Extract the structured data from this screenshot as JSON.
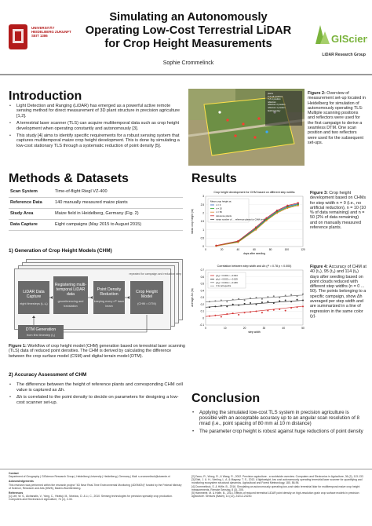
{
  "header": {
    "title_lines": [
      "Simulating an Autonomously",
      "Operating Low-Cost Terrestrial LiDAR",
      "for Crop Height Measurements"
    ],
    "author": "Sophie Crommelinck",
    "university_logo_text": "UNIVERSITÄT HEIDELBERG ZUKUNFT SEIT 1386",
    "lab_logo_text": "GIScience",
    "lab_name": "LiDAR Research Group"
  },
  "introduction": {
    "heading": "Introduction",
    "bullets": [
      "Light Detection and Ranging (LiDAR) has emerged as a powerful active remote sensing method for direct measurement of 3D plant structure in precision agriculture [1,2].",
      "A terrestrial laser scanner (TLS) can acquire multitemporal data such as crop height development when operating constantly and autonomously [3].",
      "This study [4] aims to identify specific requirements for a robust sensing system that captures multitemporal maize crop height development. This is done by simulating a low-cost stationary TLS through a systematic reduction of point density [5]."
    ],
    "figure2_caption_label": "Figure 2:",
    "figure2_caption": "Overview of measurement set-up located in Heidelberg for simulation of autonomously operating TLS: Multiple scanning positions and reflectors were used for the first campaign to derive a seamless DTM. One scan position and two reflectors were used for the subsequent set-ups.",
    "figure2_legend": [
      "plants",
      "TLS all positions",
      "TLS 1 position",
      "reflectors",
      "reflectors 2 position",
      "reflectors 1 position",
      "field boundary"
    ]
  },
  "methods": {
    "heading": "Methods & Datasets",
    "table": [
      {
        "key": "Scan System",
        "value": "Time-of-flight Riegl VZ-400"
      },
      {
        "key": "Reference Data",
        "value": "140 manually measured maize plants"
      },
      {
        "key": "Study Area",
        "value": "Maize field in Heidelberg, Germany (Fig. 2)"
      },
      {
        "key": "Data Capture",
        "value": "Eight campaigns (May 2015 to August 2015)"
      }
    ],
    "sub1": "1) Generation of Crop Height Models (CHM)",
    "workflow": {
      "repeat_label": "repeated for campaign and reduction step",
      "box1": "LiDAR Data Capture",
      "box1_sub": "eight timesteps (t₁-t₈)",
      "box2": "Registering multi-temporal LiDAR data",
      "box2_sub": "georeferencing and translation",
      "box3": "Point Density Reduction",
      "box3_sub": "keeping every nᵗʰ laser beam",
      "box4": "Crop Height Model",
      "box4_sub": "(CHM = DTM)",
      "box5": "DTM Generation",
      "box5_sub": "from first timestep (t₁)"
    },
    "figure1_label": "Figure 1:",
    "figure1_caption": "Workflow of crop height model (CHM) generation based on terrestrial laser scanning (TLS) data of reduced point densities. The CHM is derived by calculating the difference between the crop surface model (CSM) and digital terrain model (DTM).",
    "sub2": "2) Accuracy Assessment of CHM",
    "bullets2": [
      "The difference between the height of reference plants and corresponding CHM cell value is captured as Δh.",
      "Δh is correlated to the point density to decide on parameters for designing a low-cost scanner set-up."
    ]
  },
  "results": {
    "heading": "Results",
    "figure3_label": "Figure 3:",
    "figure3_caption": "Crop height development based on CHMs for step width n = 0 (i.e., no artificial reduction), n = 10 (10 % of data remaining) and n = 50 (2% of data remaining) and on manually measured reference plants.",
    "figure4_label": "Figure 4:",
    "figure4_caption": "Accuracy of CHM at 40 (t₄), 95 (t₆) and 114 (t₈) days after seeding based on point clouds reduced with different step widths (n = 0 ... 50). The points belonging to a specific campaign, show Δh averaged per step width and are summarized in a line of regression in the same color (y)."
  },
  "chart_data": [
    {
      "type": "line",
      "title": "Crop height development for CHM based on different step widths",
      "xlabel": "days after seeding",
      "ylabel": "mean crop height (m)",
      "x": [
        0,
        20,
        40,
        60,
        80,
        100,
        120
      ],
      "xlim": [
        0,
        120
      ],
      "ylim": [
        0,
        3
      ],
      "yticks": [
        0,
        0.5,
        1,
        1.5,
        2,
        2.5,
        3
      ],
      "legend_title": "Mean crop height at",
      "legend": [
        "n = 0",
        "n = 10",
        "n = 50",
        "reference plants",
        "mean number of … reference plants for CHM (n=0)"
      ],
      "series": [
        {
          "name": "n = 0",
          "color": "#2b62c2",
          "x": [
            13,
            40,
            62,
            75,
            88,
            101,
            114
          ],
          "values": [
            0.05,
            0.3,
            1.1,
            1.65,
            2.1,
            2.4,
            2.55
          ]
        },
        {
          "name": "n = 10",
          "color": "#2aa62a",
          "x": [
            13,
            40,
            62,
            75,
            88,
            101,
            114
          ],
          "values": [
            0.04,
            0.28,
            1.05,
            1.6,
            2.05,
            2.35,
            2.5
          ]
        },
        {
          "name": "n = 50",
          "color": "#d8832b",
          "x": [
            13,
            40,
            62,
            75,
            88,
            101,
            114
          ],
          "values": [
            0.03,
            0.25,
            1.0,
            1.55,
            2.0,
            2.3,
            2.45
          ]
        },
        {
          "name": "reference plants",
          "color": "#d33030",
          "x": [
            13,
            40,
            62,
            75,
            88,
            101,
            114
          ],
          "values": [
            0.06,
            0.33,
            1.15,
            1.7,
            2.15,
            2.45,
            2.6
          ]
        }
      ]
    },
    {
      "type": "scatter",
      "title": "Correlation between step width and Δh (r² = 0.78 p < 0.000)",
      "xlabel": "step width",
      "ylabel": "average Δh (m)",
      "xlim": [
        0,
        50
      ],
      "ylim": [
        -0.1,
        0.7
      ],
      "yticks": [
        -0.1,
        0,
        0.1,
        0.2,
        0.3,
        0.4,
        0.5,
        0.6,
        0.7
      ],
      "xticks": [
        0,
        10,
        20,
        30,
        40,
        50
      ],
      "legend": [
        "y(t₄) = 0.003 x + 0.024",
        "y(t₆) = 0.002 x + 0.159",
        "y(t₈) = 0.002 x + 0.236",
        "r² for all epochs"
      ],
      "series": [
        {
          "name": "t₄",
          "color": "#d33030",
          "slope": 0.003,
          "intercept": 0.024,
          "x": [
            2,
            5,
            8,
            11,
            14,
            17,
            20,
            23,
            26,
            29,
            32,
            35,
            38,
            41,
            44,
            47,
            50
          ],
          "values": [
            0.03,
            0.04,
            0.02,
            0.06,
            0.07,
            0.05,
            0.08,
            0.09,
            0.1,
            0.08,
            0.11,
            0.12,
            0.13,
            0.11,
            0.15,
            0.16,
            0.17
          ]
        },
        {
          "name": "t₆",
          "color": "#333333",
          "slope": 0.002,
          "intercept": 0.159,
          "x": [
            2,
            5,
            8,
            11,
            14,
            17,
            20,
            23,
            26,
            29,
            32,
            35,
            38,
            41,
            44,
            47,
            50
          ],
          "values": [
            0.16,
            0.17,
            0.18,
            0.17,
            0.2,
            0.19,
            0.21,
            0.22,
            0.2,
            0.23,
            0.24,
            0.22,
            0.25,
            0.26,
            0.24,
            0.27,
            0.26
          ]
        },
        {
          "name": "t₈",
          "color": "#7a7a7a",
          "slope": 0.002,
          "intercept": 0.236,
          "x": [
            2,
            5,
            8,
            11,
            14,
            17,
            20,
            23,
            26,
            29,
            32,
            35,
            38,
            41,
            44,
            47,
            50
          ],
          "values": [
            0.24,
            0.25,
            0.26,
            0.24,
            0.27,
            0.28,
            0.26,
            0.29,
            0.3,
            0.28,
            0.31,
            0.32,
            0.3,
            0.33,
            0.34,
            0.32,
            0.35
          ]
        }
      ]
    }
  ],
  "conclusion": {
    "heading": "Conclusion",
    "bullets": [
      "Applying the simulated low-cost TLS system in precision agriculture is possible with an acceptable accuracy up to an angular scan resolution of 8 mrad (i.e., point spacing of 80 mm at 10 m distance)",
      "The parameter crop height is robust against huge reductions of point density"
    ]
  },
  "footer": {
    "contact_heading": "Contact",
    "contact": "Department of Geography | GIScience Research Group | Heidelberg University | Heidelberg | Germany | Mail: s.crommelinck@utwente.nl",
    "ack_heading": "Acknowledgements",
    "ack": "This research was performed within the research project \"4D Near Real-Time Environmental Monitoring (4DEMON)\" funded by the Federal Ministry of Science, Research and Arts (MWK), Baden-Wuerttemberg.",
    "refs_heading": "References",
    "ref1": "[1] Lee, W. S., Alchanatis, V., Yang, C., Hirafuji, M., Moshou, D. & Li, C., 2010. Sensing technologies for precision specialty crop production. Computers and Electronics in Agriculture, 74 (1), 2-33.",
    "ref2": "[2] Zarco, R., Woog, R., & Wang, R., 2002. Precision agriculture - a worldwide overview. Computers and Electronics in Agriculture, 36 (2), 113-132.",
    "ref3": "[3] Eitel, J. U. H., Vierling, L. A. & Magney, T. S., 2013. A lightweight, low cost autonomously operating terrestrial laser scanner for quantifying and monitoring ecosystem structural dynamics. Agricultural and Forest Meteorology, 180, 86-96.",
    "ref4": "[4] Crommelinck, S. & Höfle, B., 2016. Simulating an autonomously operating low-cost static terrestrial lidar for multitemporal maize crop height measurements. Remote Sensing, 8 (3), 205.",
    "ref5": "[5] Hämmerle, M. & Höfle, B., 2014. Effects of reduced terrestrial LiDAR point density on high-resolution grain crop surface models in precision agriculture. Sensors (Basel), 14 (12), 24212-24230."
  },
  "colors": {
    "accent": "#7ab33c",
    "heading": "#111111",
    "uni_red": "#b31b1b"
  }
}
